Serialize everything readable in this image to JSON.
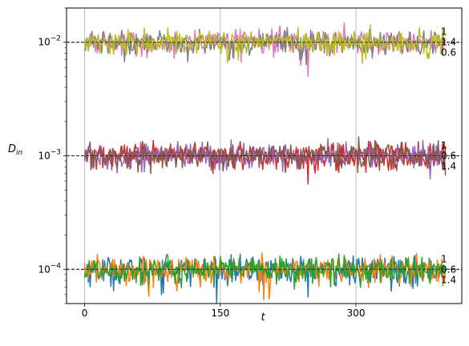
{
  "chart_data": {
    "type": "line",
    "xlabel": "t",
    "ylabel_main": "D",
    "ylabel_sub": "in",
    "xlim": [
      -20,
      417
    ],
    "ylim": [
      5e-05,
      0.02
    ],
    "yscale": "log",
    "grid": "vertical-major",
    "x_ticks": [
      {
        "value": 0,
        "label": "0"
      },
      {
        "value": 150,
        "label": "150"
      },
      {
        "value": 300,
        "label": "300"
      }
    ],
    "y_ticks": [
      {
        "value": 0.0001,
        "base": "10",
        "exp": "−4"
      },
      {
        "value": 0.001,
        "base": "10",
        "exp": "−3"
      },
      {
        "value": 0.01,
        "base": "10",
        "exp": "−2"
      }
    ],
    "reference_lines": [
      0.0001,
      0.001,
      0.01
    ],
    "n_points": 400,
    "series": [
      {
        "group": 0.0001,
        "color": "#1f77b4",
        "mean": 0.0001,
        "rel_noise": 0.14,
        "end_label": "1"
      },
      {
        "group": 0.0001,
        "color": "#ff7f0e",
        "mean": 0.0001,
        "rel_noise": 0.14,
        "end_label": "0.6"
      },
      {
        "group": 0.0001,
        "color": "#2ca02c",
        "mean": 0.0001,
        "rel_noise": 0.14,
        "end_label": "1.4"
      },
      {
        "group": 0.001,
        "color": "#d62728",
        "mean": 0.001,
        "rel_noise": 0.13,
        "end_label": "1"
      },
      {
        "group": 0.001,
        "color": "#9467bd",
        "mean": 0.001,
        "rel_noise": 0.13,
        "end_label": "0.6"
      },
      {
        "group": 0.001,
        "color": "#8c564b",
        "mean": 0.001,
        "rel_noise": 0.13,
        "end_label": "1.4"
      },
      {
        "group": 0.01,
        "color": "#e377c2",
        "mean": 0.01,
        "rel_noise": 0.12,
        "end_label": "1"
      },
      {
        "group": 0.01,
        "color": "#7f7f7f",
        "mean": 0.01,
        "rel_noise": 0.12,
        "end_label": "1.4"
      },
      {
        "group": 0.01,
        "color": "#bcbd22",
        "mean": 0.01,
        "rel_noise": 0.12,
        "end_label": "0.6"
      }
    ]
  }
}
